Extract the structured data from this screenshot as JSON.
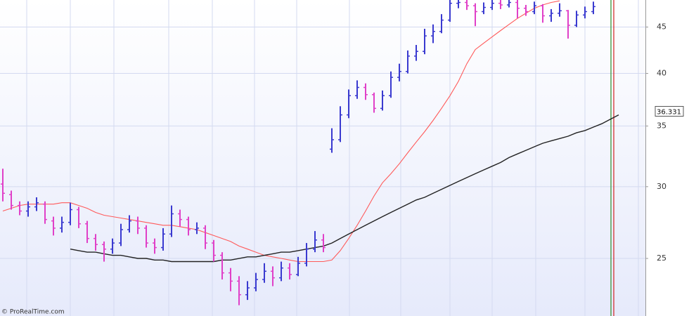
{
  "chart_data": {
    "type": "ohlc",
    "log_scale": true,
    "grid": true,
    "ylim": [
      21.6,
      48.2
    ],
    "yticks": [
      25,
      30,
      35,
      40,
      45
    ],
    "up_color": "#3a3ad0",
    "down_color": "#e040c8",
    "open": [
      30.2,
      29.4,
      28.6,
      28.2,
      28.5,
      28.7,
      27.5,
      27.0,
      27.4,
      28.3,
      27.3,
      26.3,
      25.9,
      25.6,
      26.0,
      26.9,
      27.5,
      27.0,
      26.0,
      25.7,
      26.6,
      28.0,
      27.6,
      26.9,
      27.0,
      26.0,
      25.2,
      24.1,
      23.6,
      22.8,
      23.2,
      23.7,
      24.2,
      23.8,
      24.4,
      24.0,
      24.7,
      25.6,
      26.2,
      33.0,
      33.8,
      36.0,
      37.8,
      38.6,
      37.9,
      36.6,
      37.8,
      39.6,
      40.2,
      41.8,
      42.3,
      44.0,
      44.5,
      45.8,
      47.8,
      47.9,
      47.5,
      46.8,
      47.3,
      47.8,
      47.6,
      47.9,
      47.2,
      46.8,
      47.5,
      46.3,
      46.6,
      46.9,
      45.2,
      46.4,
      46.8,
      null,
      null,
      null
    ],
    "high": [
      31.4,
      29.7,
      28.9,
      28.9,
      29.2,
      28.9,
      27.8,
      27.8,
      28.8,
      28.5,
      27.5,
      26.6,
      26.1,
      26.3,
      27.3,
      27.9,
      27.8,
      27.2,
      26.3,
      27.0,
      28.6,
      28.3,
      27.8,
      27.4,
      27.2,
      26.2,
      25.4,
      24.4,
      23.9,
      23.6,
      24.1,
      24.7,
      24.5,
      24.8,
      24.7,
      25.1,
      26.0,
      26.8,
      26.6,
      34.8,
      36.8,
      38.4,
      39.3,
      39.0,
      38.1,
      38.3,
      40.2,
      41.0,
      42.4,
      43.0,
      44.8,
      45.3,
      46.5,
      48.2,
      48.2,
      48.2,
      47.8,
      47.9,
      48.2,
      48.2,
      48.2,
      48.2,
      47.6,
      48.0,
      47.7,
      47.1,
      47.8,
      47.0,
      46.9,
      47.4,
      48.0,
      null,
      null,
      null
    ],
    "low": [
      28.9,
      28.3,
      27.9,
      27.8,
      28.2,
      27.3,
      26.5,
      26.7,
      27.2,
      27.0,
      26.0,
      25.5,
      24.8,
      25.3,
      25.8,
      26.7,
      26.6,
      25.7,
      25.3,
      25.5,
      26.4,
      27.1,
      26.5,
      26.6,
      25.6,
      24.8,
      23.7,
      23.0,
      22.2,
      22.5,
      23.0,
      23.5,
      23.3,
      23.6,
      23.7,
      23.9,
      24.5,
      25.4,
      25.4,
      32.7,
      33.6,
      35.7,
      37.5,
      37.4,
      36.2,
      36.4,
      37.6,
      39.2,
      40.0,
      41.3,
      42.0,
      43.2,
      44.3,
      45.6,
      47.2,
      47.0,
      45.1,
      46.5,
      47.0,
      47.1,
      47.3,
      46.0,
      46.3,
      46.5,
      45.5,
      45.6,
      46.2,
      43.7,
      45.0,
      46.0,
      46.5,
      null,
      null,
      null
    ],
    "close": [
      29.5,
      28.6,
      28.2,
      28.5,
      28.8,
      27.6,
      27.0,
      27.4,
      28.3,
      27.3,
      26.3,
      25.9,
      25.6,
      26.0,
      26.9,
      27.5,
      27.0,
      26.0,
      25.7,
      26.6,
      28.0,
      27.6,
      26.9,
      27.0,
      26.0,
      25.2,
      24.1,
      23.6,
      22.8,
      23.2,
      23.7,
      24.2,
      23.8,
      24.4,
      24.0,
      24.7,
      25.6,
      26.2,
      25.7,
      33.8,
      36.0,
      37.8,
      38.6,
      37.9,
      36.6,
      37.8,
      39.6,
      40.2,
      41.8,
      42.3,
      44.0,
      44.5,
      45.8,
      47.8,
      47.9,
      47.5,
      46.8,
      47.3,
      47.8,
      47.6,
      47.9,
      47.2,
      46.8,
      47.5,
      46.3,
      46.6,
      46.9,
      45.2,
      46.4,
      46.8,
      47.4,
      null,
      null,
      null
    ],
    "series": [
      {
        "color": "#ff5a5a",
        "values": [
          28.2,
          28.4,
          28.6,
          28.7,
          28.7,
          28.7,
          28.7,
          28.8,
          28.8,
          28.6,
          28.4,
          28.1,
          27.9,
          27.8,
          27.7,
          27.6,
          27.5,
          27.4,
          27.3,
          27.2,
          27.2,
          27.1,
          27.0,
          26.9,
          26.7,
          26.5,
          26.3,
          26.1,
          25.8,
          25.6,
          25.4,
          25.2,
          25.1,
          25.0,
          24.9,
          24.8,
          24.8,
          24.8,
          24.8,
          24.9,
          25.5,
          26.3,
          27.2,
          28.2,
          29.3,
          30.3,
          31.0,
          31.8,
          32.7,
          33.6,
          34.5,
          35.5,
          36.6,
          37.8,
          39.2,
          41.0,
          42.5,
          43.2,
          43.9,
          44.6,
          45.3,
          46.0,
          46.6,
          47.2,
          47.6,
          47.9,
          48.1,
          null,
          null,
          null,
          null,
          null,
          null,
          null
        ]
      },
      {
        "color": "#222222",
        "values": [
          null,
          null,
          null,
          null,
          null,
          null,
          null,
          null,
          25.6,
          25.5,
          25.4,
          25.4,
          25.3,
          25.2,
          25.2,
          25.1,
          25.0,
          25.0,
          24.9,
          24.9,
          24.8,
          24.8,
          24.8,
          24.8,
          24.8,
          24.8,
          24.9,
          24.9,
          25.0,
          25.1,
          25.1,
          25.2,
          25.3,
          25.4,
          25.4,
          25.5,
          25.6,
          25.7,
          25.8,
          26.0,
          26.3,
          26.6,
          26.9,
          27.2,
          27.5,
          27.8,
          28.1,
          28.4,
          28.7,
          29.0,
          29.2,
          29.5,
          29.8,
          30.1,
          30.4,
          30.7,
          31.0,
          31.3,
          31.6,
          31.9,
          32.3,
          32.6,
          32.9,
          33.2,
          33.5,
          33.7,
          33.9,
          34.1,
          34.4,
          34.6,
          34.9,
          35.2,
          35.6,
          36.0
        ]
      }
    ],
    "last_value": 36.331,
    "annotations": [
      "© ProRealTime.com"
    ]
  }
}
